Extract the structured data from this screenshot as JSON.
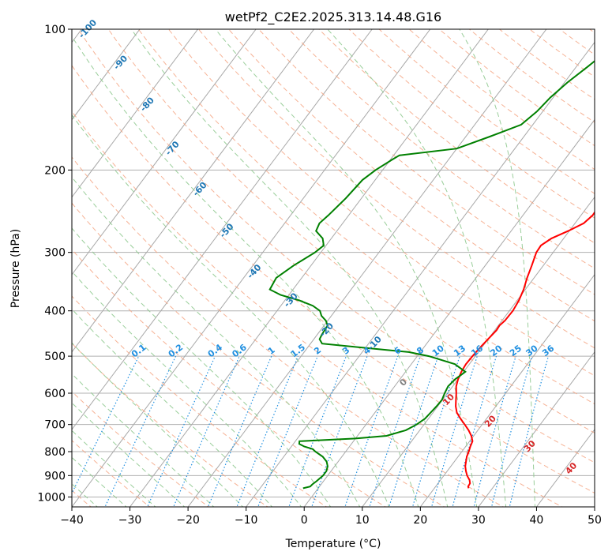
{
  "chart_data": {
    "type": "line",
    "title": "wetPf2_C2E2.2025.313.14.48.G16",
    "xlabel": "Temperature (°C)",
    "ylabel": "Pressure (hPa)",
    "xlim": [
      -40,
      50
    ],
    "ylim": [
      1050,
      100
    ],
    "x_ticks": [
      -40,
      -30,
      -20,
      -10,
      0,
      10,
      20,
      30,
      40,
      50
    ],
    "x_tick_labels": [
      "−40",
      "−30",
      "−20",
      "−10",
      "0",
      "10",
      "20",
      "30",
      "40",
      "50"
    ],
    "y_ticks": [
      100,
      200,
      300,
      400,
      500,
      600,
      700,
      800,
      900,
      1000
    ],
    "y_tick_labels": [
      "100",
      "200",
      "300",
      "400",
      "500",
      "600",
      "700",
      "800",
      "900",
      "1000"
    ],
    "isotherm_labels": [
      {
        "t": -100,
        "text": "-100"
      },
      {
        "t": -90,
        "text": "-90"
      },
      {
        "t": -80,
        "text": "-80"
      },
      {
        "t": -70,
        "text": "-70"
      },
      {
        "t": -60,
        "text": "-60"
      },
      {
        "t": -50,
        "text": "-50"
      },
      {
        "t": -40,
        "text": "-40"
      },
      {
        "t": -30,
        "text": "-30"
      },
      {
        "t": -20,
        "text": "-20"
      },
      {
        "t": -10,
        "text": "-10"
      },
      {
        "t": 0,
        "text": "0"
      },
      {
        "t": 10,
        "text": "10"
      },
      {
        "t": 20,
        "text": "20"
      },
      {
        "t": 30,
        "text": "30"
      },
      {
        "t": 40,
        "text": "40"
      }
    ],
    "mixing_ratio_labels": [
      "0.1",
      "0.2",
      "0.4",
      "0.6",
      "1",
      "1.5",
      "2",
      "3",
      "4",
      "6",
      "8",
      "10",
      "13",
      "16",
      "20",
      "25",
      "30",
      "36"
    ],
    "mixing_ratio_values": [
      0.1,
      0.2,
      0.4,
      0.6,
      1,
      1.5,
      2,
      3,
      4,
      6,
      8,
      10,
      13,
      16,
      20,
      25,
      30,
      36
    ],
    "series": [
      {
        "name": "Temperature",
        "color": "#ff0000",
        "points": [
          [
            958,
            25.9
          ],
          [
            950,
            25.6
          ],
          [
            935,
            25.5
          ],
          [
            920,
            25.0
          ],
          [
            900,
            24.0
          ],
          [
            880,
            23.2
          ],
          [
            860,
            22.5
          ],
          [
            840,
            22.0
          ],
          [
            820,
            21.5
          ],
          [
            800,
            21.2
          ],
          [
            780,
            20.8
          ],
          [
            760,
            20.5
          ],
          [
            740,
            19.6
          ],
          [
            720,
            18.4
          ],
          [
            700,
            17.0
          ],
          [
            680,
            15.5
          ],
          [
            660,
            14.1
          ],
          [
            640,
            13.1
          ],
          [
            620,
            12.3
          ],
          [
            600,
            11.5
          ],
          [
            580,
            10.6
          ],
          [
            560,
            10.0
          ],
          [
            540,
            9.6
          ],
          [
            520,
            9.4
          ],
          [
            500,
            9.5
          ],
          [
            480,
            9.7
          ],
          [
            460,
            10.0
          ],
          [
            440,
            10.3
          ],
          [
            430,
            10.2
          ],
          [
            420,
            10.5
          ],
          [
            400,
            10.6
          ],
          [
            380,
            10.3
          ],
          [
            360,
            9.7
          ],
          [
            340,
            8.8
          ],
          [
            320,
            8.0
          ],
          [
            300,
            7.1
          ],
          [
            290,
            7.0
          ],
          [
            280,
            7.9
          ],
          [
            270,
            9.8
          ],
          [
            260,
            11.5
          ],
          [
            250,
            12.0
          ],
          [
            240,
            11.9
          ],
          [
            230,
            11.6
          ],
          [
            220,
            11.2
          ],
          [
            200,
            10.1
          ],
          [
            190,
            8.8
          ],
          [
            180,
            7.2
          ],
          [
            170,
            5.6
          ],
          [
            160,
            3.4
          ],
          [
            150,
            1.3
          ],
          [
            140,
            -0.6
          ],
          [
            130,
            -1.5
          ],
          [
            120,
            -0.8
          ],
          [
            112,
            0.5
          ],
          [
            105,
            1.5
          ],
          [
            100,
            2.4
          ]
        ]
      },
      {
        "name": "Dewpoint",
        "color": "#008000",
        "points": [
          [
            958,
            -2.6
          ],
          [
            950,
            -1.6
          ],
          [
            940,
            -1.5
          ],
          [
            925,
            -1.2
          ],
          [
            900,
            -0.8
          ],
          [
            880,
            -0.8
          ],
          [
            860,
            -1.2
          ],
          [
            840,
            -2.0
          ],
          [
            820,
            -3.3
          ],
          [
            800,
            -5.2
          ],
          [
            790,
            -6.0
          ],
          [
            780,
            -7.8
          ],
          [
            770,
            -9.0
          ],
          [
            760,
            -9.3
          ],
          [
            750,
            0.0
          ],
          [
            740,
            5.0
          ],
          [
            720,
            7.6
          ],
          [
            700,
            8.7
          ],
          [
            680,
            9.4
          ],
          [
            660,
            9.6
          ],
          [
            640,
            9.8
          ],
          [
            620,
            9.9
          ],
          [
            600,
            9.5
          ],
          [
            580,
            9.2
          ],
          [
            560,
            9.5
          ],
          [
            540,
            10.3
          ],
          [
            520,
            7.5
          ],
          [
            500,
            2.0
          ],
          [
            490,
            -2.0
          ],
          [
            480,
            -10.0
          ],
          [
            470,
            -18.0
          ],
          [
            460,
            -19.0
          ],
          [
            450,
            -19.2
          ],
          [
            430,
            -19.4
          ],
          [
            420,
            -20.3
          ],
          [
            410,
            -21.7
          ],
          [
            400,
            -22.6
          ],
          [
            390,
            -24.5
          ],
          [
            380,
            -27.5
          ],
          [
            370,
            -31.4
          ],
          [
            360,
            -34.0
          ],
          [
            340,
            -34.4
          ],
          [
            320,
            -33.0
          ],
          [
            300,
            -31.0
          ],
          [
            290,
            -30.4
          ],
          [
            280,
            -31.5
          ],
          [
            270,
            -33.6
          ],
          [
            260,
            -34.0
          ],
          [
            250,
            -33.5
          ],
          [
            230,
            -32.7
          ],
          [
            210,
            -32.2
          ],
          [
            200,
            -31.2
          ],
          [
            190,
            -29.7
          ],
          [
            186,
            -29.0
          ],
          [
            180,
            -20.0
          ],
          [
            170,
            -16.0
          ],
          [
            160,
            -12.0
          ],
          [
            150,
            -11.0
          ],
          [
            140,
            -10.5
          ],
          [
            130,
            -9.5
          ],
          [
            120,
            -8.0
          ],
          [
            110,
            -6.5
          ],
          [
            100,
            -6.0
          ]
        ]
      }
    ]
  },
  "colors": {
    "isotherm": "#808080",
    "dry_adiabat": "#f4a582",
    "moist_adiabat": "#8fc98f",
    "mixing_ratio": "#1f8fe0",
    "isotherm_label_cold": "#1f77b4",
    "isotherm_label_warm": "#d62728",
    "isotherm_label_zero": "#808080"
  }
}
